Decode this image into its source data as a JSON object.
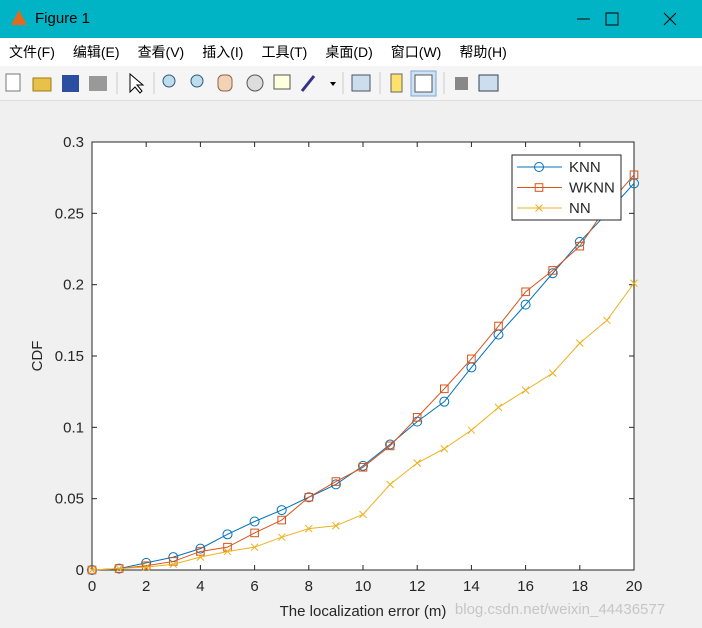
{
  "window": {
    "title": "Figure 1",
    "menu": [
      "文件(F)",
      "编辑(E)",
      "查看(V)",
      "插入(I)",
      "工具(T)",
      "桌面(D)",
      "窗口(W)",
      "帮助(H)"
    ]
  },
  "watermark": "blog.csdn.net/weixin_44436577",
  "chart_data": {
    "type": "line",
    "xlabel": "The localization error (m)",
    "ylabel": "CDF",
    "x": [
      0,
      1,
      2,
      3,
      4,
      5,
      6,
      7,
      8,
      9,
      10,
      11,
      12,
      13,
      14,
      15,
      16,
      17,
      18,
      19,
      20
    ],
    "series": [
      {
        "name": "KNN",
        "color": "#0072bd",
        "marker": "circle",
        "values": [
          0,
          0.001,
          0.005,
          0.009,
          0.015,
          0.025,
          0.034,
          0.042,
          0.051,
          0.06,
          0.073,
          0.088,
          0.104,
          0.118,
          0.142,
          0.165,
          0.186,
          0.208,
          0.23,
          0.25,
          0.271
        ]
      },
      {
        "name": "WKNN",
        "color": "#d95319",
        "marker": "square",
        "values": [
          0,
          0.001,
          0.003,
          0.006,
          0.013,
          0.016,
          0.026,
          0.035,
          0.051,
          0.062,
          0.072,
          0.087,
          0.107,
          0.127,
          0.148,
          0.171,
          0.195,
          0.21,
          0.227,
          0.255,
          0.277
        ]
      },
      {
        "name": "NN",
        "color": "#edb120",
        "marker": "x",
        "values": [
          0,
          0.001,
          0.002,
          0.004,
          0.009,
          0.013,
          0.016,
          0.023,
          0.029,
          0.031,
          0.039,
          0.06,
          0.075,
          0.085,
          0.098,
          0.114,
          0.126,
          0.138,
          0.159,
          0.175,
          0.201
        ]
      }
    ],
    "xlim": [
      0,
      20
    ],
    "xticks": [
      0,
      2,
      4,
      6,
      8,
      10,
      12,
      14,
      16,
      18,
      20
    ],
    "ylim": [
      0,
      0.3
    ],
    "yticks": [
      0,
      0.05,
      0.1,
      0.15,
      0.2,
      0.25,
      0.3
    ],
    "legend": "upper right",
    "grid": false
  }
}
